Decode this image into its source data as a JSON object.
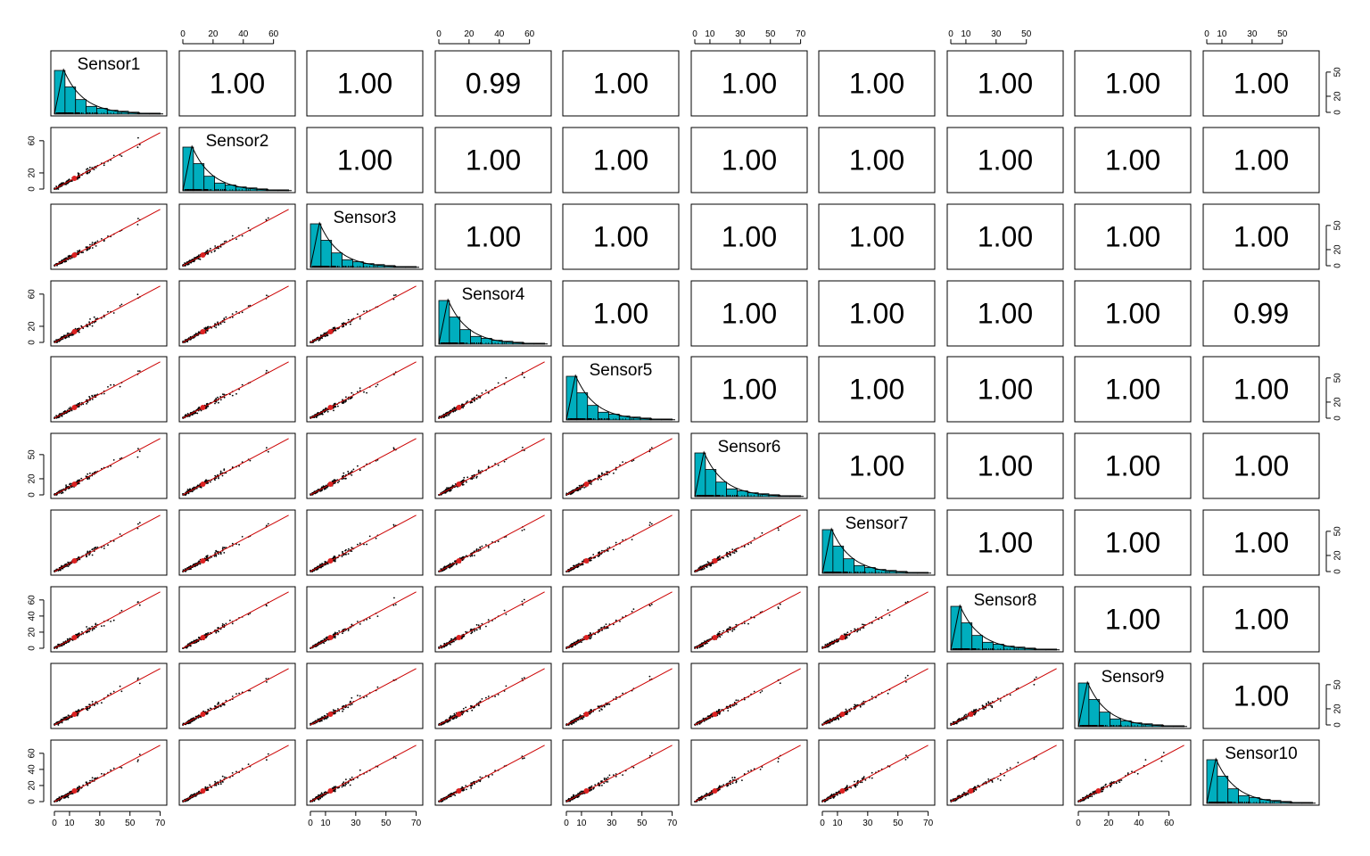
{
  "chart_data": {
    "type": "scatter",
    "variables": [
      "Sensor1",
      "Sensor2",
      "Sensor3",
      "Sensor4",
      "Sensor5",
      "Sensor6",
      "Sensor7",
      "Sensor8",
      "Sensor9",
      "Sensor10"
    ],
    "correlations": [
      [
        null,
        "1.00",
        "1.00",
        "0.99",
        "1.00",
        "1.00",
        "1.00",
        "1.00",
        "1.00",
        "1.00"
      ],
      [
        null,
        null,
        "1.00",
        "1.00",
        "1.00",
        "1.00",
        "1.00",
        "1.00",
        "1.00",
        "1.00"
      ],
      [
        null,
        null,
        null,
        "1.00",
        "1.00",
        "1.00",
        "1.00",
        "1.00",
        "1.00",
        "1.00"
      ],
      [
        null,
        null,
        null,
        null,
        "1.00",
        "1.00",
        "1.00",
        "1.00",
        "1.00",
        "0.99"
      ],
      [
        null,
        null,
        null,
        null,
        null,
        "1.00",
        "1.00",
        "1.00",
        "1.00",
        "1.00"
      ],
      [
        null,
        null,
        null,
        null,
        null,
        null,
        "1.00",
        "1.00",
        "1.00",
        "1.00"
      ],
      [
        null,
        null,
        null,
        null,
        null,
        null,
        null,
        "1.00",
        "1.00",
        "1.00"
      ],
      [
        null,
        null,
        null,
        null,
        null,
        null,
        null,
        null,
        "1.00",
        "1.00"
      ],
      [
        null,
        null,
        null,
        null,
        null,
        null,
        null,
        null,
        null,
        "1.00"
      ],
      [
        null,
        null,
        null,
        null,
        null,
        null,
        null,
        null,
        null,
        null
      ]
    ],
    "histogram_bins": [
      0,
      7,
      14,
      21,
      28,
      35,
      42,
      49,
      56,
      63,
      70
    ],
    "histogram_counts": [
      45,
      28,
      15,
      8,
      6,
      4,
      3,
      2,
      1,
      1
    ],
    "axis_range": [
      0,
      72
    ],
    "top_axis_ticks": {
      "2": [
        "0",
        "20",
        "40",
        "60"
      ],
      "4": [
        "0",
        "20",
        "40",
        "60"
      ],
      "6": [
        "0",
        "10",
        "30",
        "50",
        "70"
      ],
      "8": [
        "0",
        "10",
        "30",
        "50"
      ],
      "10": [
        "0",
        "10",
        "30",
        "50"
      ]
    },
    "bottom_axis_ticks": {
      "1": [
        "0",
        "10",
        "30",
        "50",
        "70"
      ],
      "3": [
        "0",
        "10",
        "30",
        "50",
        "70"
      ],
      "5": [
        "0",
        "10",
        "30",
        "50",
        "70"
      ],
      "7": [
        "0",
        "10",
        "30",
        "50",
        "70"
      ],
      "9": [
        "0",
        "20",
        "40",
        "60"
      ]
    },
    "left_axis_ticks": {
      "2": [
        "0",
        "20",
        "60"
      ],
      "4": [
        "0",
        "20",
        "60"
      ],
      "6": [
        "0",
        "20",
        "50"
      ],
      "8": [
        "0",
        "20",
        "40",
        "60"
      ],
      "10": [
        "0",
        "20",
        "40",
        "60"
      ]
    },
    "right_axis_ticks": {
      "1": [
        "0",
        "20",
        "50"
      ],
      "3": [
        "0",
        "20",
        "50"
      ],
      "5": [
        "0",
        "20",
        "50"
      ],
      "7": [
        "0",
        "20",
        "50"
      ],
      "9": [
        "0",
        "20",
        "50"
      ]
    },
    "colors": {
      "histogram_fill": "#00AEBE",
      "smooth_line": "#cc0000",
      "points": "#000000",
      "center_point": "#dd2222"
    }
  }
}
